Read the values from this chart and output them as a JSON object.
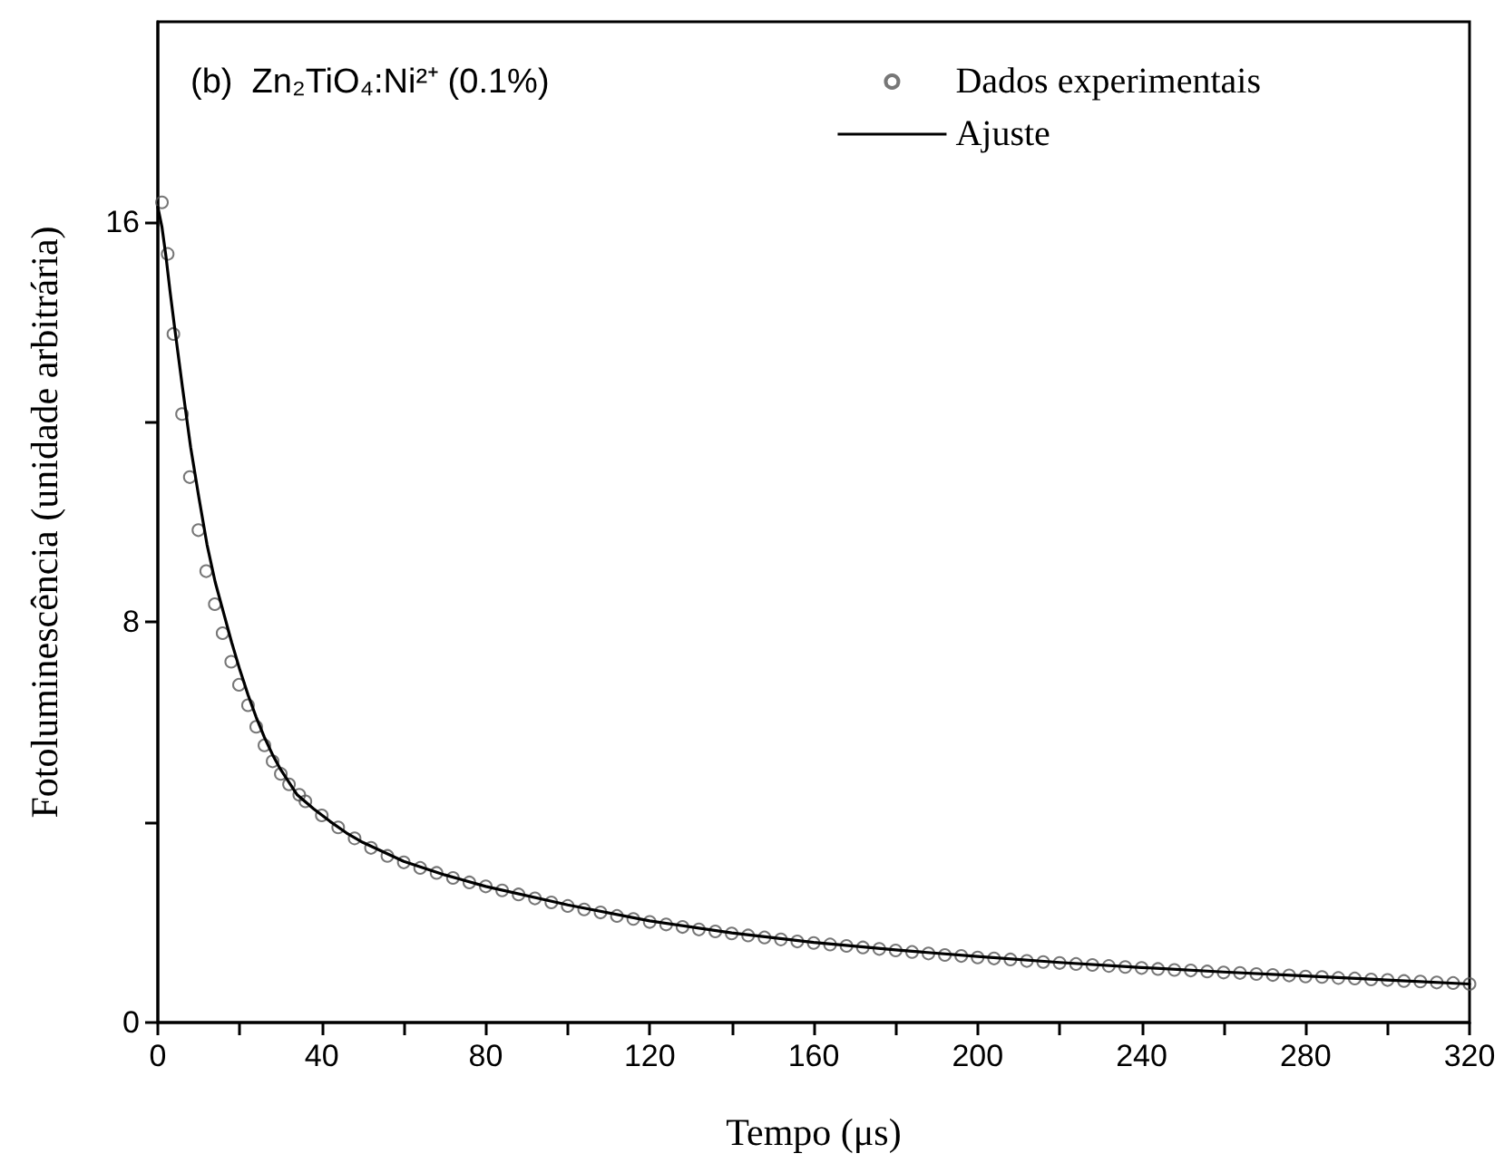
{
  "chart_data": {
    "type": "scatter",
    "annotations": [
      "(b)  Zn₂TiO₄:Ni²⁺ (0.1%)"
    ],
    "xlabel": "Tempo (μs)",
    "ylabel": "Fotoluminescência (unidade arbitrária)",
    "xlim": [
      0,
      320
    ],
    "xticks": [
      0,
      {
        "value": 20,
        "label": null
      },
      40,
      {
        "value": 60,
        "label": null
      },
      80,
      {
        "value": 100,
        "label": null
      },
      120,
      {
        "value": 140,
        "label": null
      },
      160,
      {
        "value": 180,
        "label": null
      },
      200,
      {
        "value": 220,
        "label": null
      },
      240,
      {
        "value": 260,
        "label": null
      },
      280,
      {
        "value": 300,
        "label": null
      },
      320
    ],
    "ylim": [
      0,
      20
    ],
    "yticks": [
      0,
      {
        "value": 4,
        "label": null
      },
      8,
      {
        "value": 12,
        "label": null
      },
      16
    ],
    "grid": false,
    "legend": "top right",
    "series": [
      {
        "name": "Dados experimentais",
        "marker": "circle",
        "color": "#555555",
        "x": [
          1.0,
          2.4,
          3.8,
          5.9,
          7.8,
          9.9,
          11.8,
          13.9,
          15.8,
          17.9,
          19.8,
          22,
          24,
          26,
          28,
          30,
          32,
          34.5,
          36,
          40,
          44,
          48,
          52,
          56,
          60,
          64,
          68,
          72,
          76,
          80,
          84,
          88,
          92,
          96,
          100,
          104,
          108,
          112,
          116,
          120,
          124,
          128,
          132,
          136,
          140,
          144,
          148,
          152,
          156,
          160,
          164,
          168,
          172,
          176,
          180,
          184,
          188,
          192,
          196,
          200,
          204,
          208,
          212,
          216,
          220,
          224,
          228,
          232,
          236,
          240,
          244,
          248,
          252,
          256,
          260,
          264,
          268,
          272,
          276,
          280,
          284,
          288,
          292,
          296,
          300,
          304,
          308,
          312,
          316,
          320
        ],
        "values": [
          16.39,
          15.36,
          13.76,
          12.16,
          10.9,
          9.84,
          9.02,
          8.36,
          7.78,
          7.21,
          6.75,
          6.34,
          5.91,
          5.54,
          5.22,
          4.97,
          4.76,
          4.55,
          4.42,
          4.14,
          3.9,
          3.68,
          3.49,
          3.33,
          3.2,
          3.09,
          2.99,
          2.89,
          2.8,
          2.72,
          2.64,
          2.56,
          2.48,
          2.4,
          2.33,
          2.26,
          2.2,
          2.13,
          2.07,
          2.01,
          1.96,
          1.91,
          1.86,
          1.82,
          1.78,
          1.74,
          1.7,
          1.66,
          1.62,
          1.59,
          1.56,
          1.53,
          1.5,
          1.47,
          1.44,
          1.41,
          1.38,
          1.35,
          1.33,
          1.3,
          1.28,
          1.26,
          1.23,
          1.21,
          1.19,
          1.17,
          1.15,
          1.13,
          1.11,
          1.09,
          1.07,
          1.05,
          1.04,
          1.02,
          1.0,
          0.99,
          0.97,
          0.95,
          0.94,
          0.92,
          0.91,
          0.89,
          0.88,
          0.86,
          0.85,
          0.83,
          0.82,
          0.8,
          0.79,
          0.77
        ]
      },
      {
        "name": "Ajuste",
        "type": "line",
        "marker": "none",
        "line_style": "solid",
        "color": "#000000",
        "x": [
          0,
          1,
          2,
          3,
          4,
          6,
          8,
          10,
          12,
          14,
          16,
          18,
          20,
          22,
          24,
          26,
          28,
          30,
          34,
          38,
          42,
          46,
          50,
          60,
          70,
          80,
          100,
          120,
          140,
          160,
          180,
          200,
          220,
          240,
          260,
          280,
          300,
          320
        ],
        "values": [
          16.3,
          15.9,
          15.3,
          14.6,
          13.95,
          12.7,
          11.5,
          10.5,
          9.55,
          8.8,
          8.2,
          7.6,
          7.05,
          6.55,
          6.1,
          5.7,
          5.35,
          5.05,
          4.55,
          4.27,
          4.02,
          3.79,
          3.6,
          3.22,
          2.95,
          2.72,
          2.35,
          2.03,
          1.79,
          1.6,
          1.45,
          1.32,
          1.2,
          1.1,
          1.01,
          0.93,
          0.85,
          0.77
        ]
      }
    ]
  }
}
